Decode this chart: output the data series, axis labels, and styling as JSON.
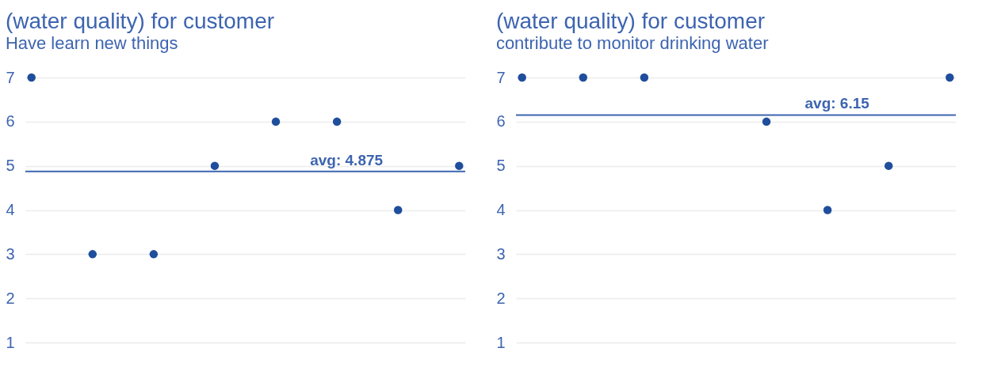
{
  "chart_data": [
    {
      "type": "scatter",
      "title": "(water quality) for customer",
      "subtitle": "Have learn new things",
      "categories": [
        null,
        null,
        null,
        null,
        null,
        null,
        null,
        null
      ],
      "series": [
        {
          "color": "#1f4e9c",
          "values": [
            7,
            3,
            3,
            5,
            6,
            6,
            4,
            5
          ]
        }
      ],
      "ylim": [
        1,
        7
      ],
      "yticks": [
        1,
        2,
        3,
        4,
        5,
        6,
        7
      ],
      "grid": "y",
      "marker": "circle",
      "tick_labels": "y",
      "ref_lines": [
        {
          "axis": "y",
          "value": 4.875,
          "label": "avg: 4.875",
          "color": "#3d64b0"
        }
      ]
    },
    {
      "type": "scatter",
      "title": "(water quality) for customer",
      "subtitle": "contribute to monitor drinking water",
      "categories": [
        null,
        null,
        null,
        null,
        null,
        null,
        null,
        null
      ],
      "series": [
        {
          "color": "#1f4e9c",
          "values": [
            7,
            7,
            7,
            null,
            6,
            4,
            5,
            7
          ]
        }
      ],
      "ylim": [
        1,
        7
      ],
      "yticks": [
        1,
        2,
        3,
        4,
        5,
        6,
        7
      ],
      "grid": "y",
      "marker": "circle",
      "tick_labels": "y",
      "ref_lines": [
        {
          "axis": "y",
          "value": 6.15,
          "label": "avg: 6.15",
          "color": "#3d64b0"
        }
      ]
    }
  ]
}
